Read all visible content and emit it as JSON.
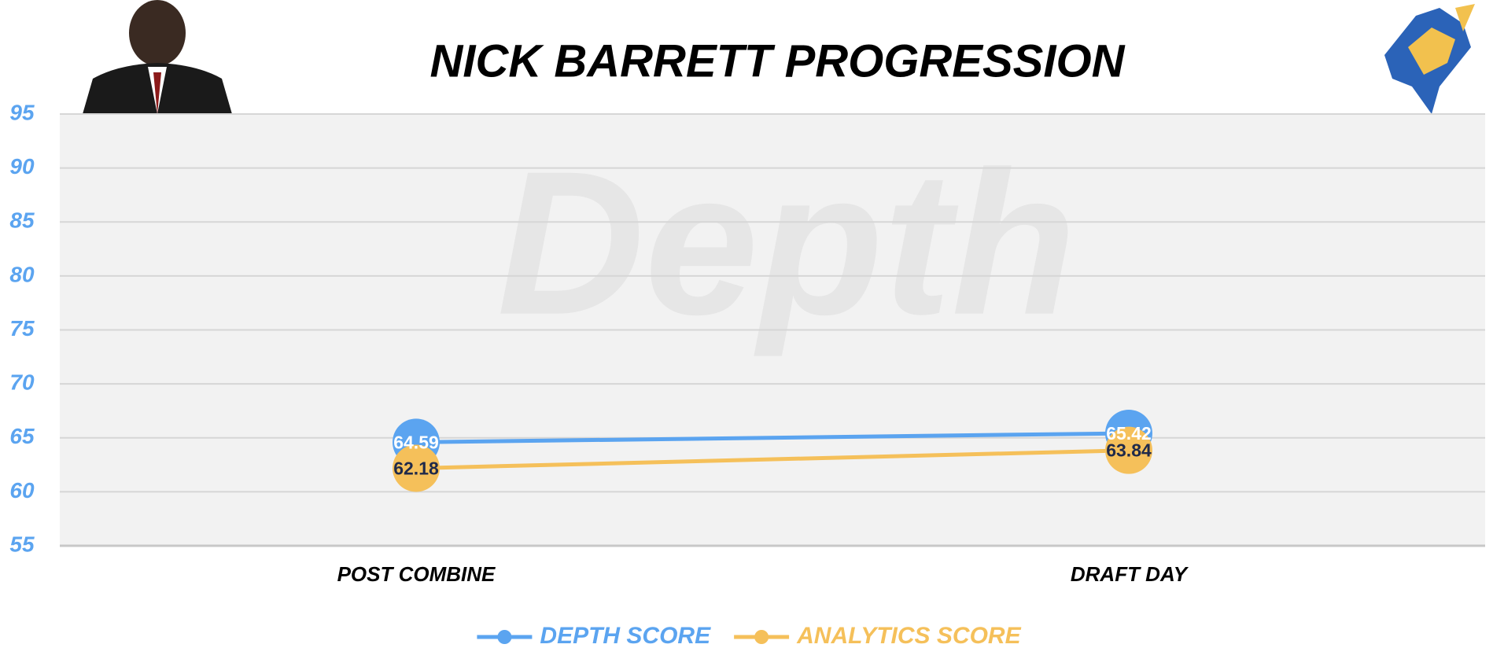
{
  "chart_data": {
    "type": "line",
    "title": "NICK BARRETT PROGRESSION",
    "watermark": "Depth",
    "categories": [
      "POST COMBINE",
      "DRAFT DAY"
    ],
    "series": [
      {
        "name": "DEPTH SCORE",
        "color": "#5ba4f0",
        "label_color": "#ffffff",
        "values": [
          64.59,
          65.42
        ]
      },
      {
        "name": "ANALYTICS SCORE",
        "color": "#f5c05a",
        "label_color": "#1f2a4a",
        "values": [
          62.18,
          63.84
        ]
      }
    ],
    "ylim": [
      55,
      95
    ],
    "yticks": [
      55,
      60,
      65,
      70,
      75,
      80,
      85,
      90,
      95
    ],
    "grid": true,
    "legend": "bottom"
  }
}
